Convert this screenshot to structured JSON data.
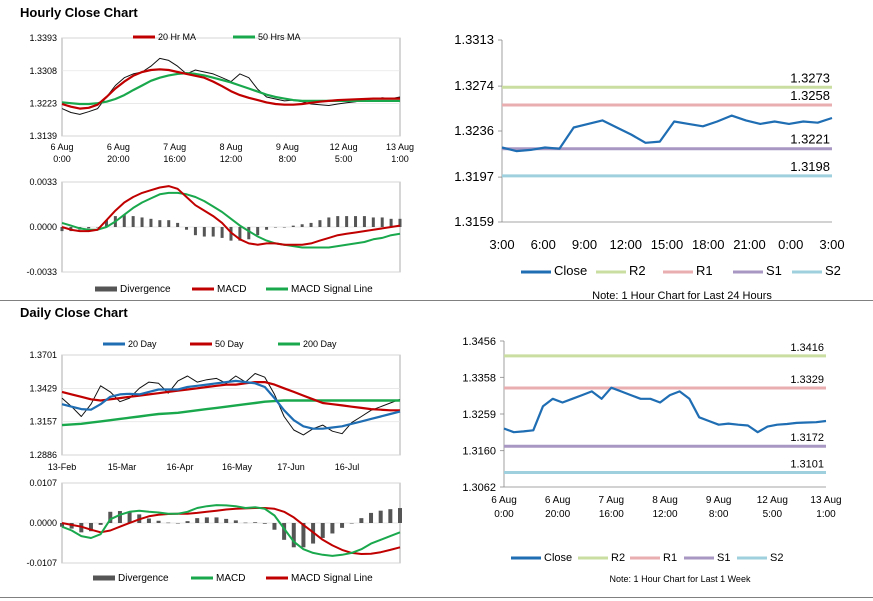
{
  "sections": {
    "hourly_title": "Hourly Close Chart",
    "daily_title": "Daily Close Chart"
  },
  "colors": {
    "close": "#1f6db3",
    "r2": "#c9dea0",
    "r1": "#e9aeb0",
    "s1": "#a897c2",
    "s2": "#9fd0de",
    "ma_short": "#c00000",
    "ma_long": "#1aa84d",
    "macd_bar": "#555555",
    "price": "#111111"
  },
  "chart_data": [
    {
      "id": "hourly_price",
      "type": "line",
      "title": "Hourly Close Chart",
      "legend": [
        "20 Hr MA",
        "50 Hrs MA"
      ],
      "yticks": [
        "1.3393",
        "1.3308",
        "1.3223",
        "1.3139"
      ],
      "ylim": [
        1.3139,
        1.3393
      ],
      "xticks": [
        [
          "6 Aug",
          "0:00"
        ],
        [
          "6 Aug",
          "20:00"
        ],
        [
          "7 Aug",
          "16:00"
        ],
        [
          "8 Aug",
          "12:00"
        ],
        [
          "9 Aug",
          "8:00"
        ],
        [
          "12 Aug",
          "5:00"
        ],
        [
          "13 Aug",
          "1:00"
        ]
      ],
      "series": [
        {
          "name": "Price",
          "values": [
            1.321,
            1.32,
            1.3195,
            1.3202,
            1.321,
            1.324,
            1.327,
            1.329,
            1.33,
            1.3305,
            1.332,
            1.334,
            1.3335,
            1.332,
            1.33,
            1.331,
            1.3305,
            1.33,
            1.329,
            1.328,
            1.33,
            1.329,
            1.326,
            1.324,
            1.3235,
            1.323,
            1.3232,
            1.3228,
            1.3222,
            1.322,
            1.3218,
            1.3222,
            1.3225,
            1.3228,
            1.3232,
            1.3236,
            1.3238,
            1.3236,
            1.324
          ]
        },
        {
          "name": "20 Hr MA",
          "values": [
            1.3222,
            1.3215,
            1.321,
            1.3212,
            1.322,
            1.324,
            1.3262,
            1.328,
            1.3295,
            1.3305,
            1.331,
            1.3312,
            1.331,
            1.3305,
            1.33,
            1.3295,
            1.329,
            1.328,
            1.3268,
            1.3255,
            1.3245,
            1.3238,
            1.3232,
            1.3226,
            1.3222,
            1.322,
            1.322,
            1.3222,
            1.3225,
            1.3228,
            1.323,
            1.3232,
            1.3233,
            1.3234,
            1.3235,
            1.3236,
            1.3236,
            1.3236,
            1.3236
          ]
        },
        {
          "name": "50 Hrs MA",
          "values": [
            1.3226,
            1.3224,
            1.3222,
            1.3222,
            1.3224,
            1.3228,
            1.3235,
            1.3245,
            1.3258,
            1.327,
            1.3282,
            1.329,
            1.3296,
            1.33,
            1.3302,
            1.33,
            1.3296,
            1.329,
            1.3284,
            1.3278,
            1.327,
            1.3262,
            1.3254,
            1.3246,
            1.324,
            1.3236,
            1.3232,
            1.323,
            1.323,
            1.323,
            1.323,
            1.323,
            1.323,
            1.323,
            1.323,
            1.323,
            1.323,
            1.323,
            1.323
          ]
        }
      ]
    },
    {
      "id": "hourly_macd",
      "type": "line",
      "legend": [
        "Divergence",
        "MACD",
        "MACD Signal Line"
      ],
      "yticks": [
        "0.0033",
        "0.0000",
        "-0.0033"
      ],
      "ylim": [
        -0.0033,
        0.0033
      ],
      "series": [
        {
          "name": "MACD",
          "values": [
            0.0,
            -0.0002,
            -0.0003,
            -0.0003,
            -0.0002,
            0.0005,
            0.0012,
            0.0018,
            0.0022,
            0.0025,
            0.0027,
            0.0029,
            0.003,
            0.0028,
            0.0022,
            0.0016,
            0.0012,
            0.0008,
            0.0003,
            -0.0004,
            -0.0009,
            -0.0012,
            -0.0013,
            -0.0012,
            -0.0012,
            -0.0013,
            -0.0013,
            -0.0013,
            -0.0012,
            -0.001,
            -0.0008,
            -0.0006,
            -0.0005,
            -0.0004,
            -0.0003,
            -0.0002,
            -0.0001,
            0.0,
            0.0001
          ]
        },
        {
          "name": "MACD Signal Line",
          "values": [
            0.0003,
            0.0001,
            -0.0001,
            -0.0002,
            -0.0002,
            0.0,
            0.0004,
            0.0009,
            0.0014,
            0.0018,
            0.0021,
            0.0024,
            0.0025,
            0.0025,
            0.0024,
            0.0022,
            0.0019,
            0.0015,
            0.0011,
            0.0006,
            0.0001,
            -0.0003,
            -0.0007,
            -0.001,
            -0.0012,
            -0.0013,
            -0.0014,
            -0.0015,
            -0.0015,
            -0.0015,
            -0.0015,
            -0.0014,
            -0.0013,
            -0.0012,
            -0.0011,
            -0.0009,
            -0.0008,
            -0.0006,
            -0.0005
          ]
        }
      ]
    },
    {
      "id": "hourly_pivot",
      "type": "line",
      "legend": [
        "Close",
        "R2",
        "R1",
        "S1",
        "S2"
      ],
      "note": "Note: 1 Hour Chart for Last 24 Hours",
      "yticks": [
        "1.3313",
        "1.3274",
        "1.3236",
        "1.3197",
        "1.3159"
      ],
      "ylim": [
        1.3159,
        1.3313
      ],
      "xticks": [
        "3:00",
        "6:00",
        "9:00",
        "12:00",
        "15:00",
        "18:00",
        "21:00",
        "0:00",
        "3:00"
      ],
      "levels": [
        {
          "name": "R2",
          "value": 1.3273,
          "label": "1.3273"
        },
        {
          "name": "R1",
          "value": 1.3258,
          "label": "1.3258"
        },
        {
          "name": "S1",
          "value": 1.3221,
          "label": "1.3221"
        },
        {
          "name": "S2",
          "value": 1.3198,
          "label": "1.3198"
        }
      ],
      "series": [
        {
          "name": "Close",
          "values": [
            1.3222,
            1.3219,
            1.322,
            1.3222,
            1.3221,
            1.3239,
            1.3242,
            1.3245,
            1.3239,
            1.3233,
            1.3226,
            1.3227,
            1.3244,
            1.3242,
            1.324,
            1.3244,
            1.3249,
            1.3245,
            1.3242,
            1.3244,
            1.3242,
            1.3244,
            1.3243,
            1.3247
          ]
        }
      ]
    },
    {
      "id": "daily_price",
      "type": "line",
      "title": "Daily Close Chart",
      "legend": [
        "20 Day",
        "50 Day",
        "200 Day"
      ],
      "yticks": [
        "1.3701",
        "1.3429",
        "1.3157",
        "1.2886"
      ],
      "ylim": [
        1.2886,
        1.3701
      ],
      "xticks": [
        "13-Feb",
        "15-Mar",
        "16-Apr",
        "16-May",
        "17-Jun",
        "16-Jul"
      ],
      "series": [
        {
          "name": "Price",
          "values": [
            1.335,
            1.328,
            1.32,
            1.33,
            1.345,
            1.34,
            1.332,
            1.335,
            1.343,
            1.348,
            1.347,
            1.339,
            1.349,
            1.353,
            1.348,
            1.35,
            1.351,
            1.347,
            1.353,
            1.348,
            1.355,
            1.352,
            1.338,
            1.32,
            1.309,
            1.305,
            1.31,
            1.313,
            1.308,
            1.306,
            1.315,
            1.32,
            1.325,
            1.328,
            1.331,
            1.334
          ]
        },
        {
          "name": "20 Day",
          "values": [
            1.33,
            1.328,
            1.326,
            1.3255,
            1.33,
            1.336,
            1.338,
            1.3385,
            1.338,
            1.34,
            1.342,
            1.342,
            1.342,
            1.344,
            1.345,
            1.346,
            1.347,
            1.348,
            1.349,
            1.348,
            1.347,
            1.344,
            1.335,
            1.325,
            1.317,
            1.312,
            1.31,
            1.31,
            1.311,
            1.312,
            1.314,
            1.316,
            1.318,
            1.32,
            1.322,
            1.324
          ]
        },
        {
          "name": "50 Day",
          "values": [
            1.34,
            1.338,
            1.336,
            1.334,
            1.333,
            1.334,
            1.335,
            1.336,
            1.337,
            1.338,
            1.339,
            1.34,
            1.341,
            1.342,
            1.343,
            1.344,
            1.345,
            1.346,
            1.346,
            1.347,
            1.348,
            1.348,
            1.346,
            1.343,
            1.34,
            1.337,
            1.334,
            1.331,
            1.33,
            1.329,
            1.328,
            1.327,
            1.326,
            1.3255,
            1.325,
            1.325
          ]
        },
        {
          "name": "200 Day",
          "values": [
            1.313,
            1.3135,
            1.314,
            1.315,
            1.316,
            1.317,
            1.318,
            1.319,
            1.32,
            1.321,
            1.322,
            1.3225,
            1.323,
            1.324,
            1.325,
            1.326,
            1.327,
            1.328,
            1.329,
            1.33,
            1.331,
            1.332,
            1.3325,
            1.333,
            1.333,
            1.333,
            1.333,
            1.333,
            1.333,
            1.333,
            1.333,
            1.333,
            1.333,
            1.333,
            1.333,
            1.333
          ]
        }
      ]
    },
    {
      "id": "daily_macd",
      "type": "line",
      "legend": [
        "Divergence",
        "MACD",
        "MACD Signal Line"
      ],
      "yticks": [
        "0.0107",
        "0.0000",
        "-0.0107"
      ],
      "ylim": [
        -0.0107,
        0.0107
      ],
      "series": [
        {
          "name": "MACD",
          "values": [
            -0.001,
            -0.002,
            -0.0035,
            -0.004,
            -0.003,
            0.001,
            0.0022,
            0.003,
            0.0033,
            0.003,
            0.0028,
            0.0025,
            0.0025,
            0.003,
            0.004,
            0.0045,
            0.0048,
            0.0047,
            0.0045,
            0.004,
            0.0042,
            0.0038,
            0.002,
            -0.0015,
            -0.005,
            -0.007,
            -0.008,
            -0.0085,
            -0.0088,
            -0.0085,
            -0.008,
            -0.007,
            -0.0055,
            -0.0045,
            -0.0035,
            -0.0025
          ]
        },
        {
          "name": "MACD Signal Line",
          "values": [
            0.0,
            -0.0005,
            -0.001,
            -0.0018,
            -0.0025,
            -0.002,
            -0.001,
            0.0,
            0.001,
            0.0018,
            0.0022,
            0.0024,
            0.0025,
            0.0025,
            0.0027,
            0.003,
            0.0033,
            0.0036,
            0.0038,
            0.0039,
            0.004,
            0.004,
            0.0038,
            0.003,
            0.0015,
            -0.0005,
            -0.0025,
            -0.0045,
            -0.006,
            -0.0072,
            -0.008,
            -0.0083,
            -0.0082,
            -0.0078,
            -0.0072,
            -0.0065
          ]
        }
      ]
    },
    {
      "id": "daily_pivot",
      "type": "line",
      "legend": [
        "Close",
        "R2",
        "R1",
        "S1",
        "S2"
      ],
      "note": "Note: 1 Hour Chart for Last 1 Week",
      "yticks": [
        "1.3456",
        "1.3358",
        "1.3259",
        "1.3160",
        "1.3062"
      ],
      "ylim": [
        1.3062,
        1.3456
      ],
      "xticks": [
        [
          "6 Aug",
          "0:00"
        ],
        [
          "6 Aug",
          "20:00"
        ],
        [
          "7 Aug",
          "16:00"
        ],
        [
          "8 Aug",
          "12:00"
        ],
        [
          "9 Aug",
          "8:00"
        ],
        [
          "12 Aug",
          "5:00"
        ],
        [
          "13 Aug",
          "1:00"
        ]
      ],
      "levels": [
        {
          "name": "R2",
          "value": 1.3416,
          "label": "1.3416"
        },
        {
          "name": "R1",
          "value": 1.3329,
          "label": "1.3329"
        },
        {
          "name": "S1",
          "value": 1.3172,
          "label": "1.3172"
        },
        {
          "name": "S2",
          "value": 1.3101,
          "label": "1.3101"
        }
      ],
      "series": [
        {
          "name": "Close",
          "values": [
            1.322,
            1.321,
            1.3212,
            1.3215,
            1.328,
            1.33,
            1.329,
            1.33,
            1.331,
            1.332,
            1.33,
            1.333,
            1.332,
            1.331,
            1.33,
            1.33,
            1.329,
            1.331,
            1.332,
            1.33,
            1.325,
            1.324,
            1.323,
            1.3233,
            1.323,
            1.3228,
            1.321,
            1.3225,
            1.323,
            1.3232,
            1.3235,
            1.3236,
            1.3237,
            1.324
          ]
        }
      ]
    }
  ]
}
